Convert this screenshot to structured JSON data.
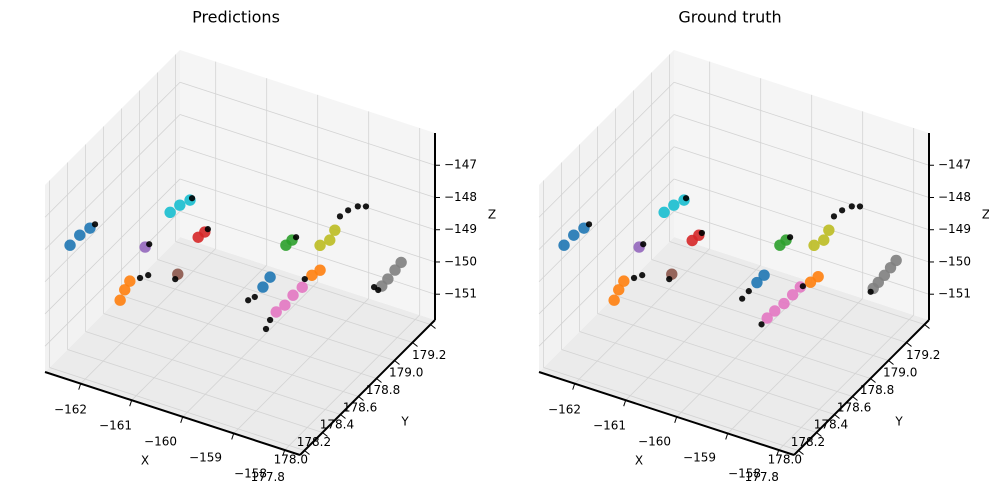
{
  "chart_data": [
    {
      "type": "scatter3d",
      "title": "Predictions",
      "xlabel": "X",
      "ylabel": "Y",
      "zlabel": "Z",
      "xlim": [
        -162.7,
        -157.7
      ],
      "ylim": [
        177.75,
        179.25
      ],
      "zlim": [
        -151.8,
        -146.0
      ],
      "grid": true,
      "xticks": [
        {
          "value": -162,
          "label": "−162"
        },
        {
          "value": -161,
          "label": "−161"
        },
        {
          "value": -160,
          "label": "−160"
        },
        {
          "value": -159,
          "label": "−159"
        },
        {
          "value": -158,
          "label": "−158"
        }
      ],
      "yticks": [
        177.8,
        {
          "value": 178,
          "label": "178.0"
        },
        178.2,
        178.4,
        178.6,
        178.8,
        {
          "value": 179,
          "label": "179.0"
        },
        179.2
      ],
      "zticks": [
        {
          "value": -151,
          "label": "−151"
        },
        {
          "value": -150,
          "label": "−150"
        },
        {
          "value": -149,
          "label": "−149"
        },
        {
          "value": -148,
          "label": "−148"
        },
        {
          "value": -147,
          "label": "−147"
        }
      ],
      "series": [
        {
          "color": "#1f77b4",
          "size": 40,
          "x": [
            -162.65,
            -162.46,
            -162.26
          ],
          "y": [
            178,
            178,
            178
          ],
          "z": [
            -148.54,
            -148.13,
            -147.81
          ]
        },
        {
          "color": "#ff7f0e",
          "size": 40,
          "x": [
            -162.55,
            -162.46,
            -162.36
          ],
          "y": [
            178.5,
            178.5,
            178.5
          ],
          "z": [
            -151.59,
            -151.22,
            -150.9
          ]
        },
        {
          "color": "#2ca02c",
          "size": 40,
          "x": [
            -159.3,
            -159.18
          ],
          "y": [
            178.5,
            178.5
          ],
          "z": [
            -148.21,
            -147.99
          ]
        },
        {
          "color": "#d62728",
          "size": 40,
          "x": [
            -161.02,
            -160.89
          ],
          "y": [
            178.5,
            178.5
          ],
          "z": [
            -148.85,
            -148.62
          ]
        },
        {
          "color": "#9467bd",
          "size": 40,
          "x": [
            -162.06
          ],
          "y": [
            178.5
          ],
          "z": [
            -149.69
          ]
        },
        {
          "color": "#8c564b",
          "size": 40,
          "x": [
            -161.42
          ],
          "y": [
            178.5
          ],
          "z": [
            -150.2
          ]
        },
        {
          "color": "#e377c2",
          "size": 40,
          "x": [
            -158.98,
            -159.16,
            -159.32,
            -159.49
          ],
          "y": [
            178.5,
            178.5,
            178.5,
            178.5
          ],
          "z": [
            -149.35,
            -149.69,
            -150.08,
            -150.38
          ]
        },
        {
          "color": "#7f7f7f",
          "size": 40,
          "x": [
            -157.57,
            -157.69,
            -157.83,
            -157.95
          ],
          "y": [
            178.8,
            178.8,
            178.8,
            178.8
          ],
          "z": [
            -148.69,
            -148.99,
            -149.34,
            -149.62
          ]
        },
        {
          "color": "#bcbd22",
          "size": 40,
          "x": [
            -158.63,
            -158.44,
            -158.34
          ],
          "y": [
            178.5,
            178.5,
            178.5
          ],
          "z": [
            -147.87,
            -147.61,
            -147.25
          ]
        },
        {
          "color": "#17becf",
          "size": 40,
          "x": [
            -161.57,
            -161.38,
            -161.18
          ],
          "y": [
            178.5,
            178.5,
            178.5
          ],
          "z": [
            -148.36,
            -148.04,
            -147.78
          ]
        },
        {
          "color": "#1f77b4",
          "size": 40,
          "x": [
            -159.61,
            -159.75
          ],
          "y": [
            178.5,
            178.5
          ],
          "z": [
            -149.36,
            -149.74
          ]
        },
        {
          "color": "#ff7f0e",
          "size": 40,
          "x": [
            -158.63,
            -158.79
          ],
          "y": [
            178.5,
            178.5
          ],
          "z": [
            -148.64,
            -148.88
          ]
        },
        {
          "color": "#000000",
          "size": 12,
          "x": [
            -162.16,
            -161.14,
            -160.83,
            -161.98,
            -162.16,
            -162.0,
            -161.47,
            -159.1,
            -158.24,
            -158.08,
            -157.89,
            -157.73,
            -159.91,
            -160.04,
            -158.93,
            -159.61,
            -159.69,
            -158.02,
            -158.1
          ],
          "y": [
            178,
            178.5,
            178.5,
            178.5,
            178.5,
            178.5,
            178.5,
            178.5,
            178.5,
            178.5,
            178.5,
            178.5,
            178.5,
            178.5,
            178.5,
            178.5,
            178.5,
            178.8,
            178.8
          ],
          "z": [
            -147.64,
            -147.7,
            -148.5,
            -149.56,
            -150.7,
            -150.53,
            -150.38,
            -147.86,
            -146.77,
            -146.5,
            -146.28,
            -146.2,
            -150.13,
            -150.3,
            -149.07,
            -150.69,
            -151.01,
            -149.78,
            -149.73
          ]
        }
      ]
    },
    {
      "type": "scatter3d",
      "title": "Ground truth",
      "xlabel": "X",
      "ylabel": "Y",
      "zlabel": "Z",
      "xlim": [
        -162.7,
        -157.7
      ],
      "ylim": [
        177.75,
        179.25
      ],
      "zlim": [
        -151.8,
        -146.0
      ],
      "grid": true,
      "xticks": [
        {
          "value": -162,
          "label": "−162"
        },
        {
          "value": -161,
          "label": "−161"
        },
        {
          "value": -160,
          "label": "−160"
        },
        {
          "value": -159,
          "label": "−159"
        },
        {
          "value": -158,
          "label": "−158"
        }
      ],
      "yticks": [
        177.8,
        {
          "value": 178,
          "label": "178.0"
        },
        178.2,
        178.4,
        178.6,
        178.8,
        {
          "value": 179,
          "label": "179.0"
        },
        179.2
      ],
      "zticks": [
        {
          "value": -151,
          "label": "−151"
        },
        {
          "value": -150,
          "label": "−150"
        },
        {
          "value": -149,
          "label": "−149"
        },
        {
          "value": -148,
          "label": "−148"
        },
        {
          "value": -147,
          "label": "−147"
        }
      ],
      "series": [
        {
          "color": "#1f77b4",
          "size": 40,
          "x": [
            -162.65,
            -162.46,
            -162.26
          ],
          "y": [
            178,
            178,
            178
          ],
          "z": [
            -148.54,
            -148.13,
            -147.81
          ]
        },
        {
          "color": "#ff7f0e",
          "size": 40,
          "x": [
            -162.55,
            -162.46,
            -162.36
          ],
          "y": [
            178.5,
            178.5,
            178.5
          ],
          "z": [
            -151.59,
            -151.22,
            -150.9
          ]
        },
        {
          "color": "#2ca02c",
          "size": 40,
          "x": [
            -159.3,
            -159.18
          ],
          "y": [
            178.5,
            178.5
          ],
          "z": [
            -148.21,
            -147.99
          ]
        },
        {
          "color": "#d62728",
          "size": 40,
          "x": [
            -161.02,
            -160.89
          ],
          "y": [
            178.5,
            178.5
          ],
          "z": [
            -148.95,
            -148.72
          ]
        },
        {
          "color": "#9467bd",
          "size": 40,
          "x": [
            -162.06
          ],
          "y": [
            178.5
          ],
          "z": [
            -149.69
          ]
        },
        {
          "color": "#8c564b",
          "size": 40,
          "x": [
            -161.42
          ],
          "y": [
            178.5
          ],
          "z": [
            -150.2
          ]
        },
        {
          "color": "#e377c2",
          "size": 40,
          "x": [
            -158.9,
            -159.05,
            -159.22,
            -159.4,
            -159.55
          ],
          "y": [
            178.5,
            178.5,
            178.5,
            178.5,
            178.5
          ],
          "z": [
            -149.3,
            -149.62,
            -149.98,
            -150.3,
            -150.6
          ]
        },
        {
          "color": "#7f7f7f",
          "size": 40,
          "x": [
            -157.55,
            -157.66,
            -157.78,
            -157.9,
            -158.0
          ],
          "y": [
            178.8,
            178.8,
            178.8,
            178.8,
            178.8
          ],
          "z": [
            -148.62,
            -148.9,
            -149.2,
            -149.48,
            -149.72
          ]
        },
        {
          "color": "#bcbd22",
          "size": 40,
          "x": [
            -158.63,
            -158.44,
            -158.34
          ],
          "y": [
            178.5,
            178.5,
            178.5
          ],
          "z": [
            -147.87,
            -147.61,
            -147.25
          ]
        },
        {
          "color": "#17becf",
          "size": 40,
          "x": [
            -161.57,
            -161.38,
            -161.18
          ],
          "y": [
            178.5,
            178.5,
            178.5
          ],
          "z": [
            -148.36,
            -148.04,
            -147.78
          ]
        },
        {
          "color": "#1f77b4",
          "size": 40,
          "x": [
            -159.61,
            -159.75
          ],
          "y": [
            178.5,
            178.5
          ],
          "z": [
            -149.3,
            -149.6
          ]
        },
        {
          "color": "#ff7f0e",
          "size": 40,
          "x": [
            -158.55,
            -158.7
          ],
          "y": [
            178.5,
            178.5
          ],
          "z": [
            -148.8,
            -149.05
          ]
        },
        {
          "color": "#000000",
          "size": 12,
          "x": [
            -162.16,
            -161.14,
            -160.83,
            -161.98,
            -162.16,
            -162.0,
            -161.47,
            -159.1,
            -158.24,
            -158.08,
            -157.89,
            -157.73,
            -159.91,
            -160.04,
            -158.85,
            -159.66,
            -158.05
          ],
          "y": [
            178,
            178.5,
            178.5,
            178.5,
            178.5,
            178.5,
            178.5,
            178.5,
            178.5,
            178.5,
            178.5,
            178.5,
            178.5,
            178.5,
            178.5,
            178.5,
            178.8
          ],
          "z": [
            -147.64,
            -147.7,
            -148.62,
            -149.56,
            -150.7,
            -150.53,
            -150.38,
            -147.86,
            -146.77,
            -146.5,
            -146.28,
            -146.2,
            -149.95,
            -150.25,
            -149.25,
            -150.85,
            -149.85
          ]
        }
      ]
    }
  ]
}
